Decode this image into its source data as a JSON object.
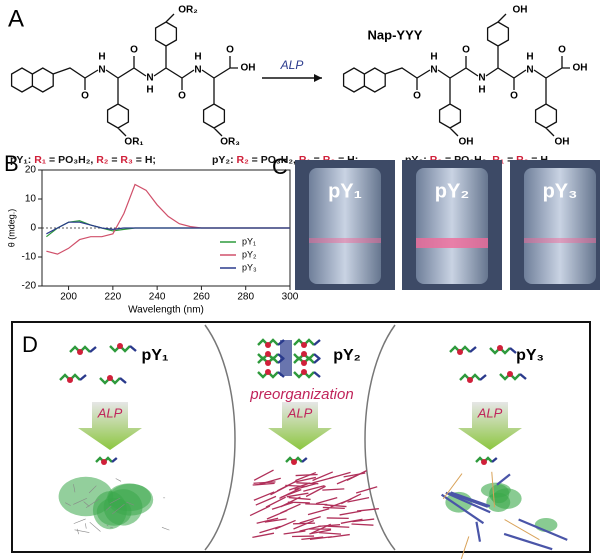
{
  "panel_a": {
    "label": "A",
    "product": "Nap-YYY",
    "arrow_label": "ALP",
    "left_atoms": [
      "OR₂",
      "O",
      "H",
      "N",
      "O",
      "H",
      "N",
      "O",
      "H",
      "N",
      "OH",
      "O",
      "OR₁",
      "OR₃"
    ],
    "right_atoms": [
      "OH",
      "O",
      "H",
      "N",
      "O",
      "H",
      "N",
      "O",
      "H",
      "N",
      "OH",
      "O",
      "OH",
      "OH"
    ],
    "formulas": [
      [
        "pY₁: ",
        "R₁",
        " = PO₃H₂, ",
        "R₂",
        " = ",
        "R₃",
        " = H;"
      ],
      [
        "pY₂: ",
        "R₂",
        " = PO₃H₂, ",
        "R₁",
        " = ",
        "R₃",
        " = H;"
      ],
      [
        "pY₃: ",
        "R₃",
        " = PO₃H₂, ",
        "R₁",
        " = ",
        "R₂",
        " = H"
      ]
    ]
  },
  "panel_b": {
    "label": "B"
  },
  "chart_data": {
    "type": "line",
    "x_label": "Wavelength (nm)",
    "y_label": "θ (mdeg.)",
    "x": [
      190,
      195,
      200,
      205,
      210,
      215,
      220,
      225,
      230,
      235,
      240,
      245,
      250,
      255,
      260,
      265,
      270,
      275,
      280,
      285,
      290,
      295,
      300
    ],
    "series": [
      {
        "name": "pY₁",
        "color": "#2e9a3c",
        "values": [
          -3,
          0,
          2,
          2.5,
          1,
          0,
          -1,
          -0.5,
          0,
          0,
          0,
          0,
          0,
          0,
          0,
          0,
          0,
          0,
          0,
          0,
          0,
          0,
          0
        ]
      },
      {
        "name": "pY₂",
        "color": "#d0506a",
        "values": [
          -8,
          -9,
          -7,
          -4,
          -3,
          -3,
          -2,
          5,
          15,
          13,
          8,
          4,
          1.5,
          0.5,
          0,
          0,
          0,
          0,
          0,
          0,
          0,
          0,
          0
        ]
      },
      {
        "name": "pY₃",
        "color": "#2a3a8c",
        "values": [
          -2,
          0,
          2,
          2,
          1,
          0,
          -0.5,
          0,
          0,
          0,
          0,
          0,
          0,
          0,
          0,
          0,
          0,
          0,
          0,
          0,
          0,
          0,
          0
        ]
      }
    ],
    "xlim": [
      188,
      300
    ],
    "ylim": [
      -20,
      20
    ],
    "xticks": [
      200,
      220,
      240,
      260,
      280,
      300
    ],
    "yticks": [
      -20,
      -10,
      0,
      10,
      20
    ],
    "legend": "lower right"
  },
  "panel_c": {
    "label": "C",
    "vials": [
      "pY₁",
      "pY₂",
      "pY₃"
    ]
  },
  "panel_d": {
    "label": "D",
    "groups": [
      "pY₁",
      "pY₂",
      "pY₃"
    ],
    "note": "preorganization",
    "arrow_label": "ALP"
  }
}
